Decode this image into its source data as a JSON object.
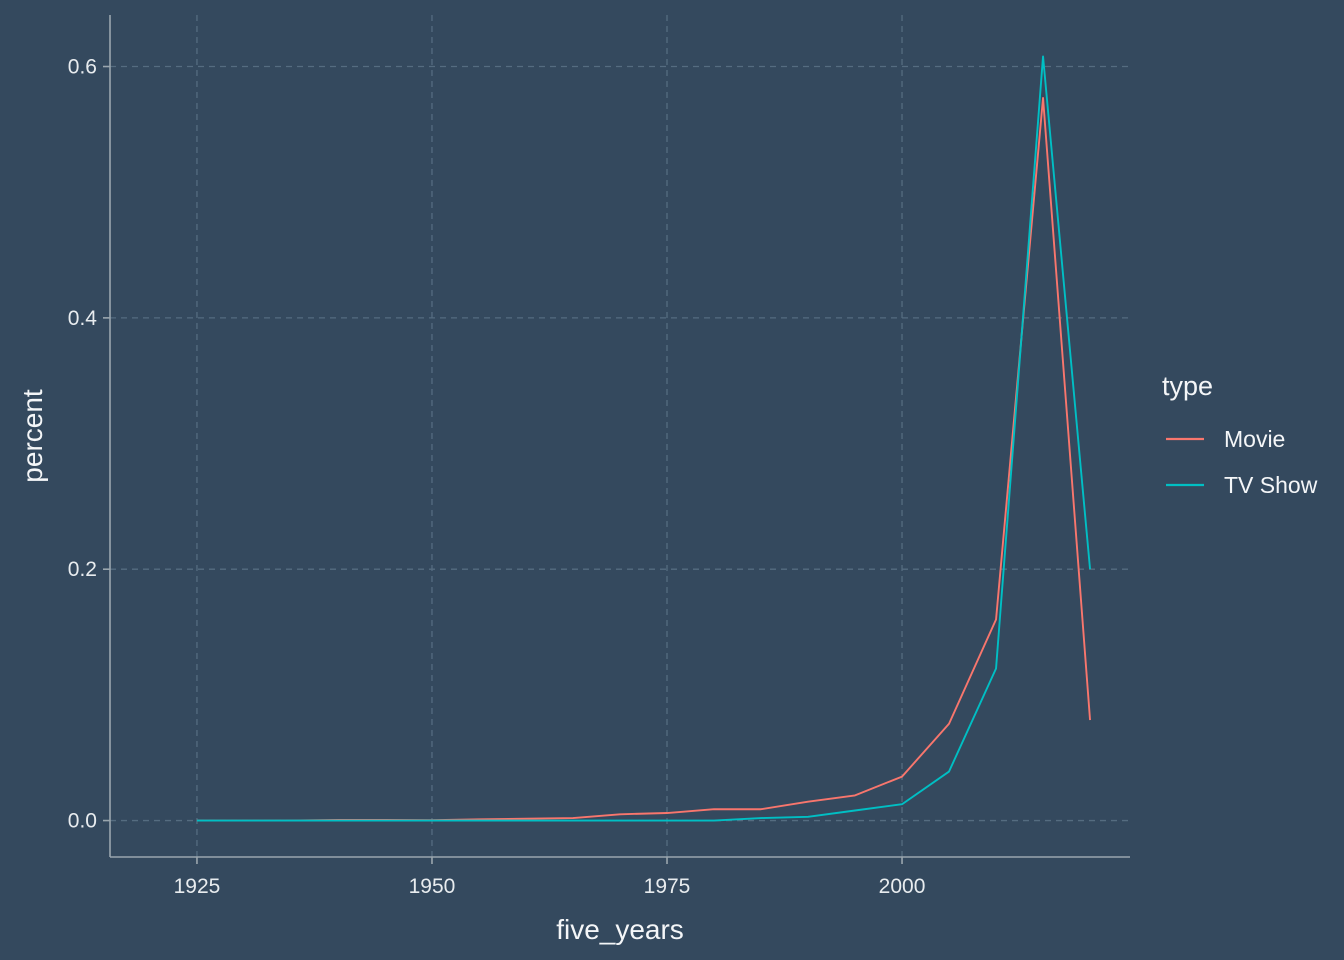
{
  "chart_data": {
    "type": "line",
    "title": "",
    "xlabel": "five_years",
    "ylabel": "percent",
    "xlim": [
      1915.75,
      2024.25
    ],
    "ylim": [
      -0.029,
      0.641
    ],
    "x_ticks": [
      1925,
      1950,
      1975,
      2000
    ],
    "y_ticks": [
      0.0,
      0.2,
      0.4,
      0.6
    ],
    "x_tick_labels": [
      "1925",
      "1950",
      "1975",
      "2000"
    ],
    "y_tick_labels": [
      "0.0",
      "0.2",
      "0.4",
      "0.6"
    ],
    "grid": true,
    "legend": {
      "title": "type",
      "placement": "right"
    },
    "x": [
      1925,
      1930,
      1935,
      1940,
      1945,
      1950,
      1955,
      1960,
      1965,
      1970,
      1975,
      1980,
      1985,
      1990,
      1995,
      2000,
      2005,
      2010,
      2015,
      2020
    ],
    "series": [
      {
        "name": "Movie",
        "color": "#f8766d",
        "values": [
          0.0,
          0.0,
          0.0,
          0.0005,
          0.0005,
          0.0003,
          0.001,
          0.0015,
          0.002,
          0.005,
          0.006,
          0.009,
          0.009,
          0.015,
          0.02,
          0.035,
          0.077,
          0.16,
          0.575,
          0.08
        ]
      },
      {
        "name": "TV Show",
        "color": "#00bfc4",
        "values": [
          0.0,
          0.0,
          0.0,
          0.0,
          0.0,
          0.0,
          0.0,
          0.0,
          0.0,
          0.0,
          0.0,
          0.0,
          0.002,
          0.003,
          0.008,
          0.013,
          0.039,
          0.121,
          0.608,
          0.2
        ]
      }
    ]
  }
}
